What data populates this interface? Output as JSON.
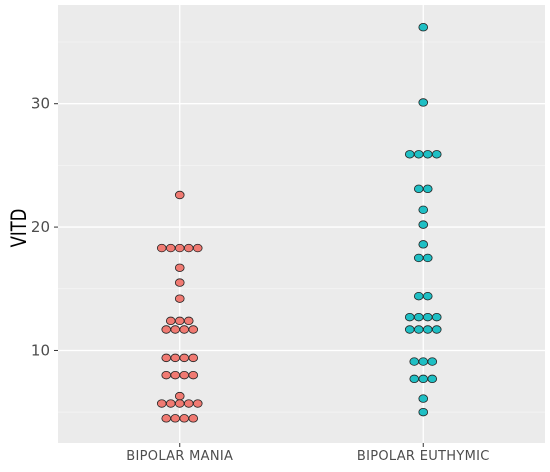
{
  "chart_data": {
    "type": "scatter",
    "subtype": "dotplot",
    "title": "",
    "xlabel": "",
    "ylabel": "VITD",
    "categories": [
      "BIPOLAR MANIA",
      "BIPOLAR EUTHYMIC"
    ],
    "ylim": [
      2.5,
      38
    ],
    "yticks": [
      10,
      20,
      30
    ],
    "grid": true,
    "legend": "none",
    "colors": {
      "panel": "#EBEBEB",
      "grid_major": "#FFFFFF",
      "grid_minor": "#F5F5F5",
      "axis_text": "#4D4D4D",
      "mania_fill": "#F07A72",
      "euthymic_fill": "#1FBFC4",
      "point_stroke": "#222222"
    },
    "series": [
      {
        "values": [
          22.6,
          18.3,
          18.3,
          18.3,
          18.3,
          18.3,
          16.7,
          15.5,
          14.2,
          12.4,
          12.4,
          12.4,
          11.7,
          11.7,
          11.7,
          11.7,
          9.4,
          9.4,
          9.4,
          9.4,
          8.0,
          8.0,
          8.0,
          8.0,
          6.3,
          5.7,
          5.7,
          5.7,
          5.7,
          5.7,
          4.5,
          4.5,
          4.5,
          4.5
        ]
      },
      {
        "values": [
          36.2,
          30.1,
          25.9,
          25.9,
          25.9,
          25.9,
          23.1,
          23.1,
          21.4,
          20.2,
          18.6,
          17.5,
          17.5,
          14.4,
          14.4,
          12.7,
          12.7,
          12.7,
          12.7,
          11.7,
          11.7,
          11.7,
          11.7,
          9.1,
          9.1,
          9.1,
          7.7,
          7.7,
          7.7,
          6.1,
          5.0
        ]
      }
    ]
  }
}
